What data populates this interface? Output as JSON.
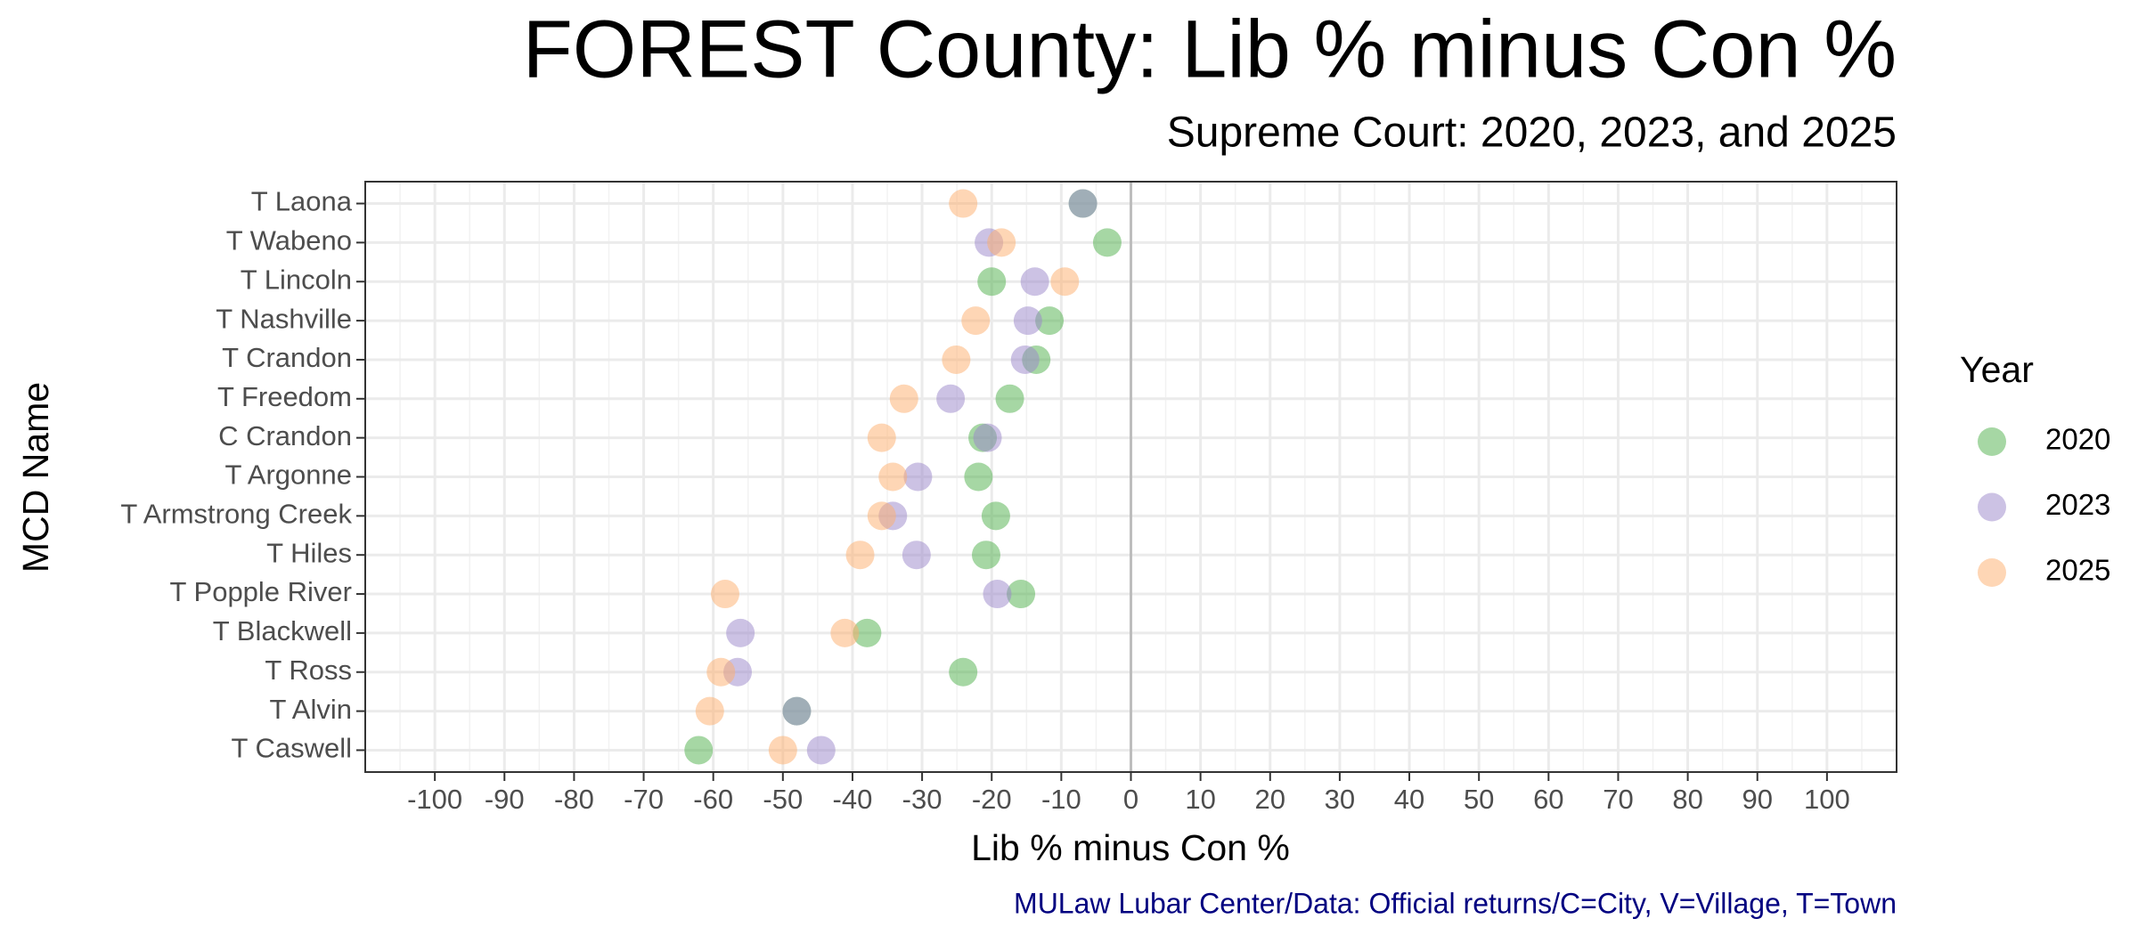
{
  "chart_data": {
    "type": "dot",
    "title": "FOREST County: Lib % minus Con %",
    "subtitle": "Supreme Court: 2020, 2023, and 2025",
    "x_label": "Lib % minus Con %",
    "y_label": "MCD Name",
    "caption": "MULaw Lubar Center/Data: Official returns/C=City, V=Village, T=Town",
    "legend_title": "Year",
    "legend_position": "right",
    "grid": true,
    "categories": [
      "T Laona",
      "T Wabeno",
      "T Lincoln",
      "T Nashville",
      "T Crandon",
      "T Freedom",
      "C Crandon",
      "T Argonne",
      "T Armstrong Creek",
      "T Hiles",
      "T Popple River",
      "T Blackwell",
      "T Ross",
      "T Alvin",
      "T Caswell"
    ],
    "series": [
      {
        "name": "2020",
        "color": "#4daf4a",
        "values": [
          -6.9,
          -3.4,
          -20.0,
          -11.7,
          -13.6,
          -17.4,
          -21.3,
          -21.9,
          -19.4,
          -20.8,
          -15.8,
          -37.9,
          -24.1,
          -48.0,
          -62.1
        ]
      },
      {
        "name": "2023",
        "color": "#9a85c9",
        "values": [
          -6.9,
          -20.4,
          -13.8,
          -14.8,
          -15.2,
          -25.9,
          -20.6,
          -30.6,
          -34.2,
          -30.8,
          -19.2,
          -56.1,
          -56.5,
          -48.0,
          -44.5
        ]
      },
      {
        "name": "2025",
        "color": "#fdae6b",
        "values": [
          -24.1,
          -18.6,
          -9.5,
          -22.3,
          -25.1,
          -32.6,
          -35.8,
          -34.2,
          -35.8,
          -38.9,
          -58.3,
          -41.1,
          -58.9,
          -60.5,
          -50.0
        ]
      }
    ],
    "xlim": [
      -110,
      110
    ],
    "xticks": [
      -100,
      -90,
      -80,
      -70,
      -60,
      -50,
      -40,
      -30,
      -20,
      -10,
      0,
      10,
      20,
      30,
      40,
      50,
      60,
      70,
      80,
      90,
      100
    ]
  }
}
